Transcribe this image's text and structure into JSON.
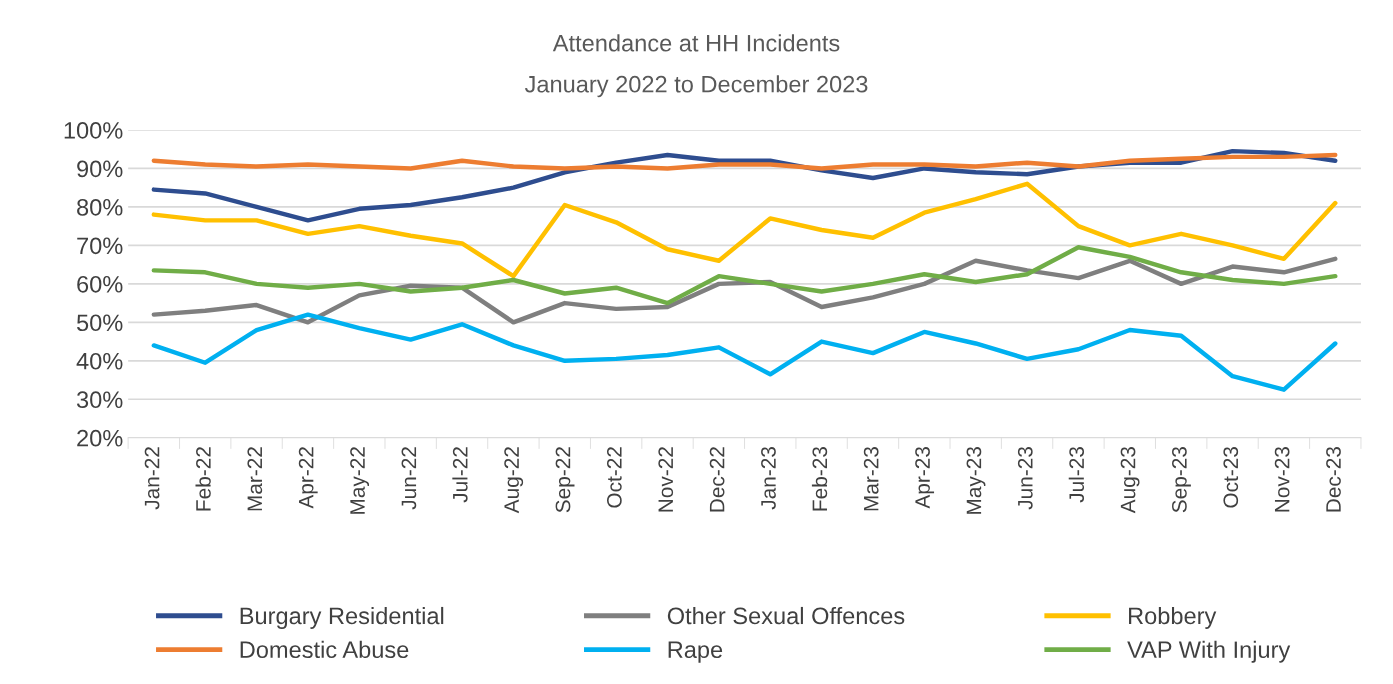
{
  "chart_data": {
    "type": "line",
    "title": "Attendance at HH Incidents",
    "subtitle": "January 2022 to December 2023",
    "categories": [
      "Jan-22",
      "Feb-22",
      "Mar-22",
      "Apr-22",
      "May-22",
      "Jun-22",
      "Jul-22",
      "Aug-22",
      "Sep-22",
      "Oct-22",
      "Nov-22",
      "Dec-22",
      "Jan-23",
      "Feb-23",
      "Mar-23",
      "Apr-23",
      "May-23",
      "Jun-23",
      "Jul-23",
      "Aug-23",
      "Sep-23",
      "Oct-23",
      "Nov-23",
      "Dec-23"
    ],
    "series": [
      {
        "name": "Burgary Residential",
        "color": "#2e4d8f",
        "values": [
          84.5,
          83.5,
          80,
          76.5,
          79.5,
          80.5,
          82.5,
          85,
          89,
          91.5,
          93.5,
          92,
          92,
          89.5,
          87.5,
          90,
          89,
          88.5,
          90.5,
          91.5,
          91.5,
          94.5,
          94,
          92
        ]
      },
      {
        "name": "Domestic Abuse",
        "color": "#ed7d31",
        "values": [
          92,
          91,
          90.5,
          91,
          90.5,
          90,
          92,
          90.5,
          90,
          90.5,
          90,
          91,
          91,
          90,
          91,
          91,
          90.5,
          91.5,
          90.5,
          92,
          92.5,
          93,
          93,
          93.5
        ]
      },
      {
        "name": "Other Sexual Offences",
        "color": "#7f7f7f",
        "values": [
          52,
          53,
          54.5,
          50,
          57,
          59.5,
          59,
          50,
          55,
          53.5,
          54,
          60,
          60.5,
          54,
          56.5,
          60,
          66,
          63.5,
          61.5,
          66,
          60,
          64.5,
          63,
          66.5
        ]
      },
      {
        "name": "Rape",
        "color": "#00b0f0",
        "values": [
          44,
          39.5,
          48,
          52,
          48.5,
          45.5,
          49.5,
          44,
          40,
          40.5,
          41.5,
          43.5,
          36.5,
          45,
          42,
          47.5,
          44.5,
          40.5,
          43,
          48,
          46.5,
          36,
          32.5,
          44.5
        ]
      },
      {
        "name": "Robbery",
        "color": "#ffc000",
        "values": [
          78,
          76.5,
          76.5,
          73,
          75,
          72.5,
          70.5,
          62,
          80.5,
          76,
          69,
          66,
          77,
          74,
          72,
          78.5,
          82,
          86,
          75,
          70,
          73,
          70,
          66.5,
          81
        ]
      },
      {
        "name": "VAP With Injury",
        "color": "#70ad47",
        "values": [
          63.5,
          63,
          60,
          59,
          60,
          58,
          59,
          61,
          57.5,
          59,
          55,
          62,
          60,
          58,
          60,
          62.5,
          60.5,
          62.5,
          69.5,
          67,
          63,
          61,
          60,
          62
        ]
      }
    ],
    "ylim": [
      20,
      100
    ],
    "yticks": [
      {
        "value": 20,
        "label": "20%"
      },
      {
        "value": 30,
        "label": "30%"
      },
      {
        "value": 40,
        "label": "40%"
      },
      {
        "value": 50,
        "label": "50%"
      },
      {
        "value": 60,
        "label": "60%"
      },
      {
        "value": 70,
        "label": "70%"
      },
      {
        "value": 80,
        "label": "80%"
      },
      {
        "value": 90,
        "label": "90%"
      },
      {
        "value": 100,
        "label": "100%"
      }
    ],
    "grid": "y",
    "legend": "bottom",
    "marker": "none",
    "line_style": "solid"
  }
}
